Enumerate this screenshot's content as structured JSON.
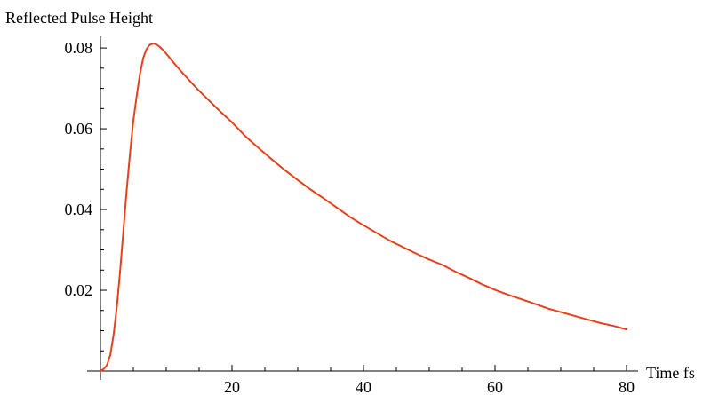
{
  "chart_data": {
    "type": "line",
    "title": "",
    "ylabel": "Reflected Pulse Height",
    "xlabel": "Time fs",
    "xlim": [
      0,
      80
    ],
    "ylim": [
      0,
      0.082
    ],
    "x_ticks": [
      20,
      40,
      60,
      80
    ],
    "x_tick_labels": [
      "20",
      "40",
      "60",
      "80"
    ],
    "y_ticks": [
      0.02,
      0.04,
      0.06,
      0.08
    ],
    "y_tick_labels": [
      "0.02",
      "0.04",
      "0.06",
      "0.08"
    ],
    "grid": false,
    "series": [
      {
        "color": "#e8401c",
        "x": [
          0,
          0.5,
          1,
          1.5,
          2,
          2.5,
          3,
          3.5,
          4,
          4.5,
          5,
          5.5,
          6,
          6.5,
          7,
          7.5,
          8,
          8.5,
          9,
          9.5,
          10,
          11,
          12,
          13,
          14,
          15,
          16,
          18,
          20,
          22,
          24,
          26,
          28,
          30,
          32,
          34,
          36,
          38,
          40,
          42,
          44,
          46,
          48,
          50,
          52,
          54,
          56,
          58,
          60,
          62,
          64,
          66,
          68,
          70,
          72,
          74,
          76,
          78,
          80
        ],
        "y": [
          0.0,
          0.0005,
          0.0015,
          0.004,
          0.009,
          0.016,
          0.025,
          0.035,
          0.045,
          0.054,
          0.062,
          0.068,
          0.0735,
          0.0775,
          0.0797,
          0.0808,
          0.0811,
          0.0809,
          0.0803,
          0.0795,
          0.0786,
          0.0766,
          0.0747,
          0.0729,
          0.0711,
          0.0694,
          0.0678,
          0.0646,
          0.0616,
          0.0582,
          0.0553,
          0.0525,
          0.0498,
          0.0473,
          0.0449,
          0.0427,
          0.0404,
          0.0381,
          0.0361,
          0.0342,
          0.0323,
          0.0307,
          0.0291,
          0.0276,
          0.0263,
          0.0246,
          0.0231,
          0.0215,
          0.0201,
          0.0189,
          0.0178,
          0.0167,
          0.0155,
          0.0146,
          0.0137,
          0.0128,
          0.0119,
          0.0112,
          0.0103
        ]
      }
    ]
  }
}
